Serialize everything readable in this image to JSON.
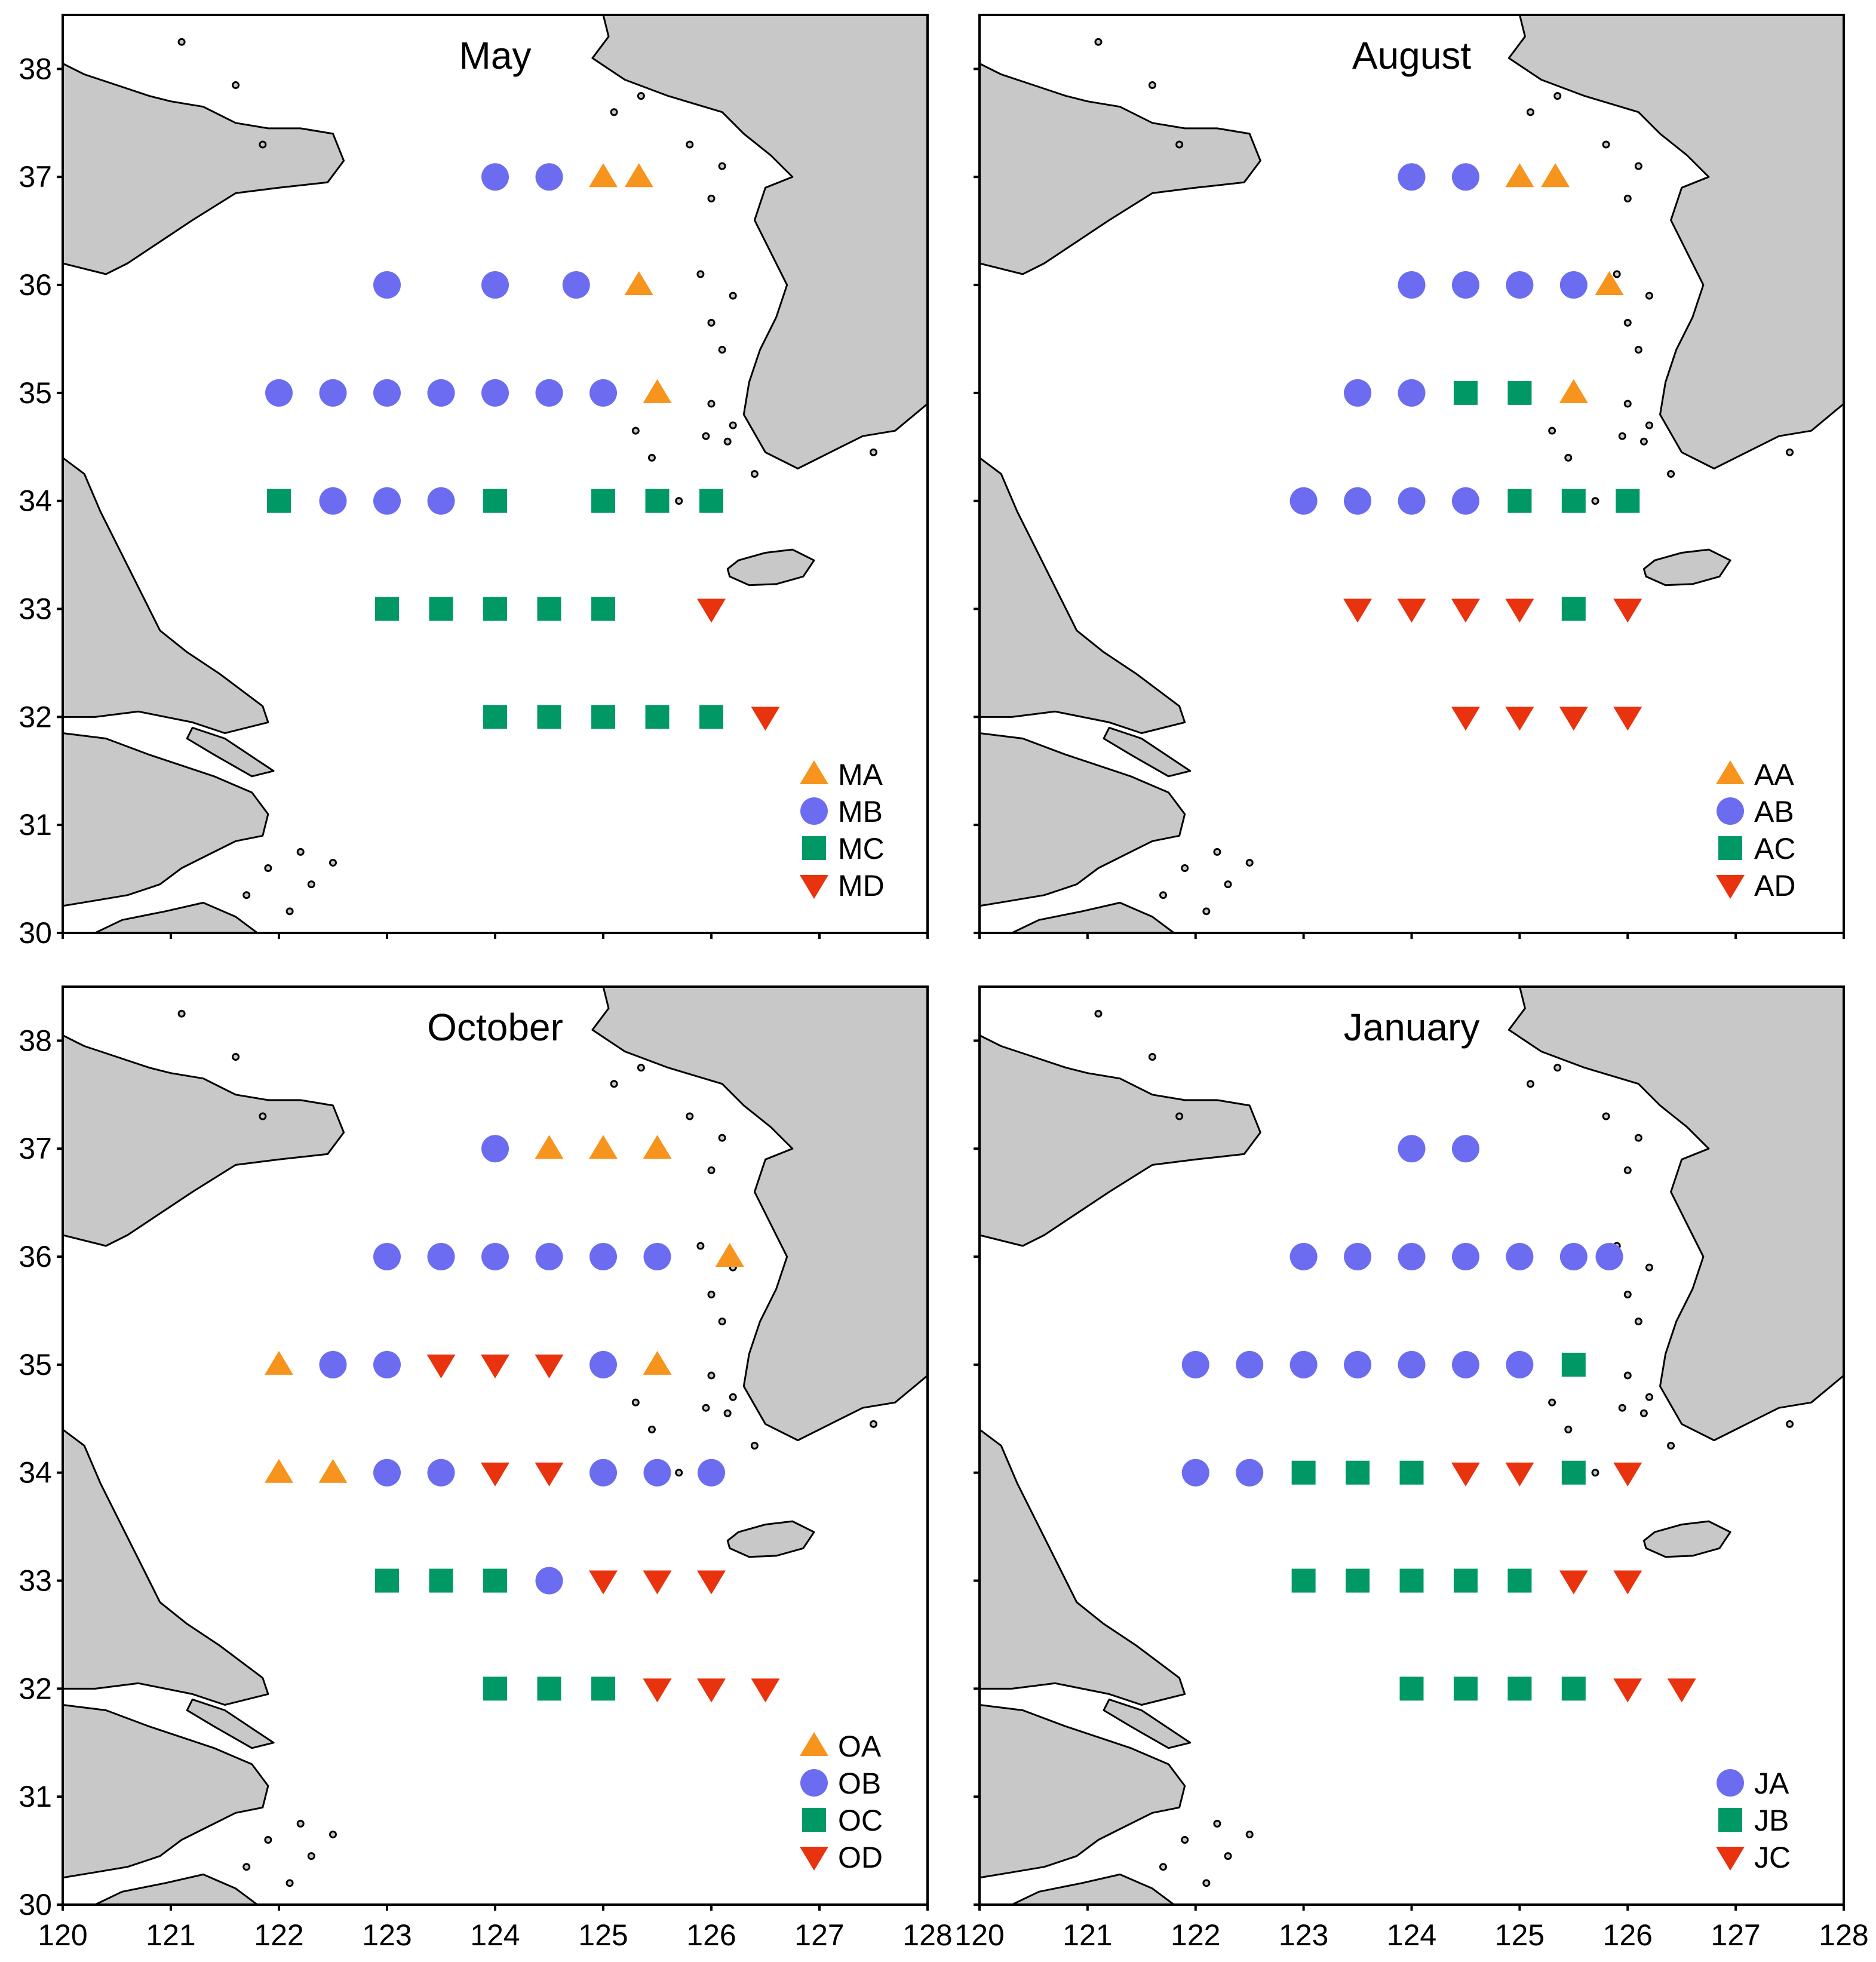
{
  "figure": {
    "x_axis": {
      "ticks": [
        120,
        121,
        122,
        123,
        124,
        125,
        126,
        127,
        128
      ],
      "range": [
        120,
        128
      ]
    },
    "y_axis": {
      "ticks": [
        30,
        31,
        32,
        33,
        34,
        35,
        36,
        37,
        38
      ],
      "range": [
        30,
        38.5
      ]
    }
  },
  "colors": {
    "land": "#c8c8c8",
    "orange": "#f7941d",
    "blue": "#6c6cf0",
    "green": "#009966",
    "red": "#e8330e"
  },
  "chart_data": [
    {
      "type": "scatter",
      "title": "May",
      "series": [
        {
          "name": "MA",
          "marker": "triangle-up",
          "color": "#f7941d",
          "points": [
            [
              125,
              37
            ],
            [
              125.33,
              37
            ],
            [
              125.33,
              36
            ],
            [
              125.5,
              35
            ]
          ]
        },
        {
          "name": "MB",
          "marker": "circle",
          "color": "#6c6cf0",
          "points": [
            [
              124,
              37
            ],
            [
              124.5,
              37
            ],
            [
              123,
              36
            ],
            [
              124,
              36
            ],
            [
              124.75,
              36
            ],
            [
              122,
              35
            ],
            [
              122.5,
              35
            ],
            [
              123,
              35
            ],
            [
              123.5,
              35
            ],
            [
              124,
              35
            ],
            [
              124.5,
              35
            ],
            [
              125,
              35
            ],
            [
              122.5,
              34
            ],
            [
              123,
              34
            ],
            [
              123.5,
              34
            ]
          ]
        },
        {
          "name": "MC",
          "marker": "square",
          "color": "#009966",
          "points": [
            [
              122,
              34
            ],
            [
              124,
              34
            ],
            [
              125,
              34
            ],
            [
              125.5,
              34
            ],
            [
              126,
              34
            ],
            [
              123,
              33
            ],
            [
              123.5,
              33
            ],
            [
              124,
              33
            ],
            [
              124.5,
              33
            ],
            [
              125,
              33
            ],
            [
              124,
              32
            ],
            [
              124.5,
              32
            ],
            [
              125,
              32
            ],
            [
              125.5,
              32
            ],
            [
              126,
              32
            ]
          ]
        },
        {
          "name": "MD",
          "marker": "triangle-down",
          "color": "#e8330e",
          "points": [
            [
              126,
              33
            ],
            [
              126.5,
              32
            ]
          ]
        }
      ]
    },
    {
      "type": "scatter",
      "title": "August",
      "series": [
        {
          "name": "AA",
          "marker": "triangle-up",
          "color": "#f7941d",
          "points": [
            [
              125,
              37
            ],
            [
              125.33,
              37
            ],
            [
              125.83,
              36
            ],
            [
              125.5,
              35
            ]
          ]
        },
        {
          "name": "AB",
          "marker": "circle",
          "color": "#6c6cf0",
          "points": [
            [
              124,
              37
            ],
            [
              124.5,
              37
            ],
            [
              124,
              36
            ],
            [
              124.5,
              36
            ],
            [
              125,
              36
            ],
            [
              125.5,
              36
            ],
            [
              123.5,
              35
            ],
            [
              124,
              35
            ],
            [
              123,
              34
            ],
            [
              123.5,
              34
            ],
            [
              124,
              34
            ],
            [
              124.5,
              34
            ]
          ]
        },
        {
          "name": "AC",
          "marker": "square",
          "color": "#009966",
          "points": [
            [
              124.5,
              35
            ],
            [
              125,
              35
            ],
            [
              125,
              34
            ],
            [
              125.5,
              34
            ],
            [
              126,
              34
            ],
            [
              125.5,
              33
            ]
          ]
        },
        {
          "name": "AD",
          "marker": "triangle-down",
          "color": "#e8330e",
          "points": [
            [
              123.5,
              33
            ],
            [
              124,
              33
            ],
            [
              124.5,
              33
            ],
            [
              125,
              33
            ],
            [
              126,
              33
            ],
            [
              124.5,
              32
            ],
            [
              125,
              32
            ],
            [
              125.5,
              32
            ],
            [
              126,
              32
            ]
          ]
        }
      ]
    },
    {
      "type": "scatter",
      "title": "October",
      "series": [
        {
          "name": "OA",
          "marker": "triangle-up",
          "color": "#f7941d",
          "points": [
            [
              124.5,
              37
            ],
            [
              125,
              37
            ],
            [
              125.5,
              37
            ],
            [
              126.17,
              36
            ],
            [
              122,
              35
            ],
            [
              125.5,
              35
            ],
            [
              122,
              34
            ],
            [
              122.5,
              34
            ]
          ]
        },
        {
          "name": "OB",
          "marker": "circle",
          "color": "#6c6cf0",
          "points": [
            [
              124,
              37
            ],
            [
              123,
              36
            ],
            [
              123.5,
              36
            ],
            [
              124,
              36
            ],
            [
              124.5,
              36
            ],
            [
              125,
              36
            ],
            [
              125.5,
              36
            ],
            [
              122.5,
              35
            ],
            [
              123,
              35
            ],
            [
              125,
              35
            ],
            [
              123,
              34
            ],
            [
              123.5,
              34
            ],
            [
              125,
              34
            ],
            [
              125.5,
              34
            ],
            [
              126,
              34
            ],
            [
              124.5,
              33
            ]
          ]
        },
        {
          "name": "OC",
          "marker": "square",
          "color": "#009966",
          "points": [
            [
              123,
              33
            ],
            [
              123.5,
              33
            ],
            [
              124,
              33
            ],
            [
              124,
              32
            ],
            [
              124.5,
              32
            ],
            [
              125,
              32
            ]
          ]
        },
        {
          "name": "OD",
          "marker": "triangle-down",
          "color": "#e8330e",
          "points": [
            [
              123.5,
              35
            ],
            [
              124,
              35
            ],
            [
              124.5,
              35
            ],
            [
              124,
              34
            ],
            [
              124.5,
              34
            ],
            [
              125,
              33
            ],
            [
              125.5,
              33
            ],
            [
              126,
              33
            ],
            [
              125.5,
              32
            ],
            [
              126,
              32
            ],
            [
              126.5,
              32
            ]
          ]
        }
      ]
    },
    {
      "type": "scatter",
      "title": "January",
      "series": [
        {
          "name": "JA",
          "marker": "circle",
          "color": "#6c6cf0",
          "points": [
            [
              124,
              37
            ],
            [
              124.5,
              37
            ],
            [
              123,
              36
            ],
            [
              123.5,
              36
            ],
            [
              124,
              36
            ],
            [
              124.5,
              36
            ],
            [
              125,
              36
            ],
            [
              125.5,
              36
            ],
            [
              125.83,
              36
            ],
            [
              122,
              35
            ],
            [
              122.5,
              35
            ],
            [
              123,
              35
            ],
            [
              123.5,
              35
            ],
            [
              124,
              35
            ],
            [
              124.5,
              35
            ],
            [
              125,
              35
            ],
            [
              122,
              34
            ],
            [
              122.5,
              34
            ]
          ]
        },
        {
          "name": "JB",
          "marker": "square",
          "color": "#009966",
          "points": [
            [
              125.5,
              35
            ],
            [
              123,
              34
            ],
            [
              123.5,
              34
            ],
            [
              124,
              34
            ],
            [
              125.5,
              34
            ],
            [
              123,
              33
            ],
            [
              123.5,
              33
            ],
            [
              124,
              33
            ],
            [
              124.5,
              33
            ],
            [
              125,
              33
            ],
            [
              124,
              32
            ],
            [
              124.5,
              32
            ],
            [
              125,
              32
            ],
            [
              125.5,
              32
            ]
          ]
        },
        {
          "name": "JC",
          "marker": "triangle-down",
          "color": "#e8330e",
          "points": [
            [
              124.5,
              34
            ],
            [
              125,
              34
            ],
            [
              126,
              34
            ],
            [
              125.5,
              33
            ],
            [
              126,
              33
            ],
            [
              126,
              32
            ],
            [
              126.5,
              32
            ]
          ]
        }
      ]
    }
  ]
}
